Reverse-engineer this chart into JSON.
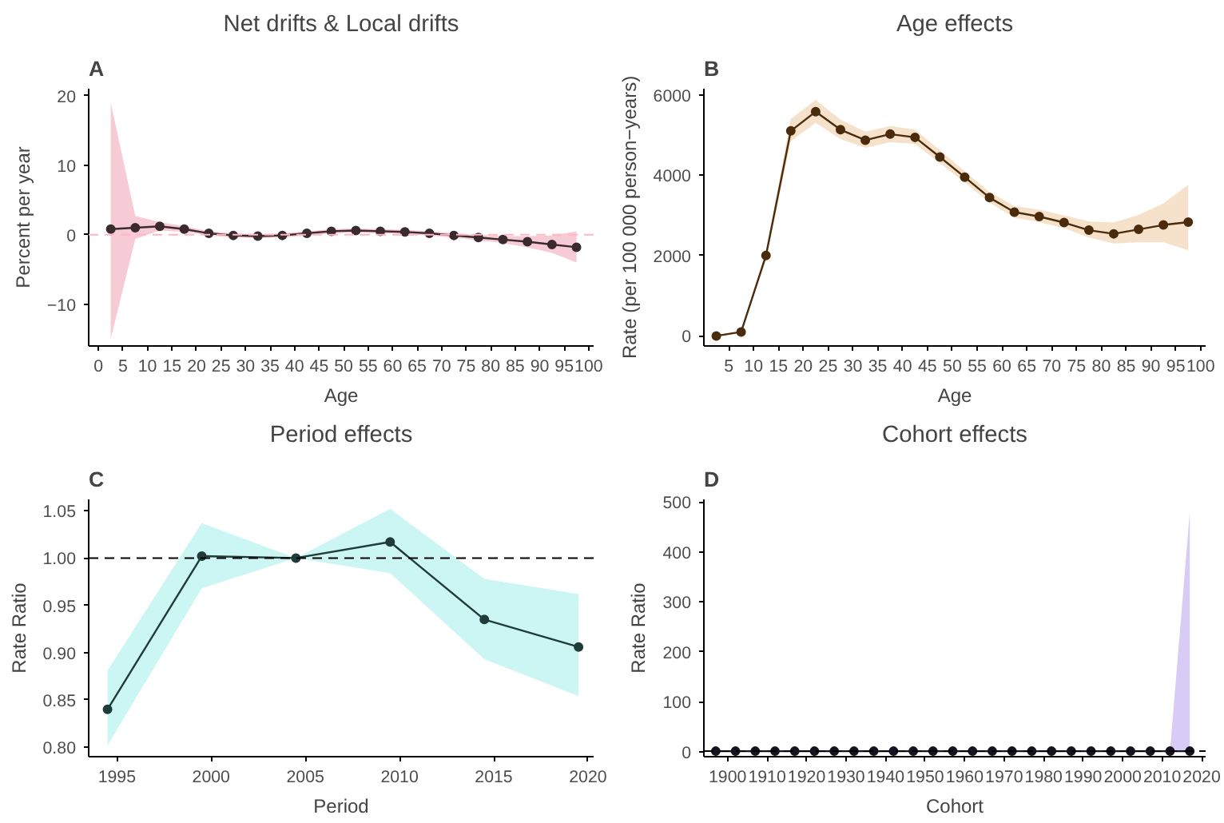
{
  "chart_data": [
    {
      "type": "line",
      "title": "Net drifts & Local drifts",
      "xlabel": "Age",
      "ylabel": "Percent per year",
      "annotations": [
        "A"
      ],
      "x": [
        2.5,
        7.5,
        12.5,
        17.5,
        22.5,
        27.5,
        32.5,
        37.5,
        42.5,
        47.5,
        52.5,
        57.5,
        62.5,
        67.5,
        72.5,
        77.5,
        82.5,
        87.5,
        92.5,
        97.5
      ],
      "series": [
        {
          "color": "#3b2a2e",
          "values": [
            0.8,
            1.0,
            1.2,
            0.8,
            0.2,
            -0.1,
            -0.2,
            -0.1,
            0.2,
            0.5,
            0.6,
            0.5,
            0.4,
            0.2,
            -0.1,
            -0.4,
            -0.7,
            -1.0,
            -1.4,
            -1.8
          ],
          "lower": [
            -15,
            -0.6,
            0.6,
            0.4,
            -0.1,
            -0.4,
            -0.5,
            -0.4,
            -0.1,
            0.2,
            0.3,
            0.2,
            0.1,
            -0.1,
            -0.4,
            -0.8,
            -1.2,
            -1.8,
            -2.6,
            -4.0
          ],
          "upper": [
            19,
            2.7,
            1.8,
            1.2,
            0.5,
            0.2,
            0.1,
            0.2,
            0.5,
            0.8,
            0.9,
            0.8,
            0.7,
            0.5,
            0.2,
            0.0,
            -0.2,
            -0.2,
            -0.1,
            0.5
          ]
        }
      ],
      "xlim": [
        -2,
        101
      ],
      "ylim": [
        -16,
        21
      ],
      "xticks": [
        0,
        5,
        10,
        15,
        20,
        25,
        30,
        35,
        40,
        45,
        50,
        55,
        60,
        65,
        70,
        75,
        80,
        85,
        90,
        95,
        100
      ],
      "yticks": [
        -10,
        0,
        10,
        20
      ],
      "ref_lines": [
        {
          "axis": "y",
          "value": 0,
          "label": null,
          "color": "#ffb6c1",
          "line_style": "dashed"
        }
      ],
      "grid": false,
      "marker": "circle",
      "line_style": "solid"
    },
    {
      "type": "line",
      "title": "Age effects",
      "xlabel": "Age",
      "ylabel": "Rate (per 100 000 person−years)",
      "annotations": [
        "B"
      ],
      "x": [
        2.5,
        7.5,
        12.5,
        17.5,
        22.5,
        27.5,
        32.5,
        37.5,
        42.5,
        47.5,
        52.5,
        57.5,
        62.5,
        67.5,
        72.5,
        77.5,
        82.5,
        87.5,
        92.5,
        97.5
      ],
      "series": [
        {
          "color": "#4a2c0c",
          "values": [
            0,
            100,
            2000,
            5100,
            5580,
            5130,
            4870,
            5020,
            4940,
            4450,
            3950,
            3440,
            3080,
            2970,
            2820,
            2630,
            2540,
            2650,
            2760,
            2830
          ],
          "lower": [
            -20,
            80,
            1900,
            4850,
            5300,
            4900,
            4680,
            4820,
            4780,
            4300,
            3820,
            3320,
            2940,
            2830,
            2680,
            2450,
            2300,
            2330,
            2330,
            2130
          ],
          "upper": [
            20,
            120,
            2100,
            5400,
            5870,
            5380,
            5080,
            5220,
            5130,
            4620,
            4100,
            3580,
            3230,
            3140,
            3000,
            2850,
            2820,
            3010,
            3300,
            3760
          ]
        }
      ],
      "xlim": [
        0,
        101
      ],
      "ylim": [
        -250,
        6150
      ],
      "xticks": [
        5,
        10,
        15,
        20,
        25,
        30,
        35,
        40,
        45,
        50,
        55,
        60,
        65,
        70,
        75,
        80,
        85,
        90,
        95,
        100
      ],
      "yticks": [
        0,
        2000,
        4000,
        6000
      ],
      "grid": false,
      "marker": "circle",
      "line_style": "solid"
    },
    {
      "type": "line",
      "title": "Period effects",
      "xlabel": "Period",
      "ylabel": "Rate Ratio",
      "annotations": [
        "C"
      ],
      "x": [
        1994.5,
        1999.5,
        2004.5,
        2009.5,
        2014.5,
        2019.5
      ],
      "series": [
        {
          "color": "#1f3b3a",
          "values": [
            0.84,
            1.002,
            1.0,
            1.017,
            0.935,
            0.906
          ],
          "lower": [
            0.802,
            0.968,
            1.0,
            0.984,
            0.893,
            0.854
          ],
          "upper": [
            0.881,
            1.037,
            1.0,
            1.052,
            0.978,
            0.962
          ]
        }
      ],
      "xlim": [
        1993.5,
        2020.3
      ],
      "ylim": [
        0.79,
        1.062
      ],
      "xticks": [
        1995,
        2000,
        2005,
        2010,
        2015,
        2020
      ],
      "yticks": [
        {
          "value": 0.8,
          "label": "0.80"
        },
        {
          "value": 0.85,
          "label": "0.85"
        },
        {
          "value": 0.9,
          "label": "0.90"
        },
        {
          "value": 0.95,
          "label": "0.95"
        },
        {
          "value": 1.0,
          "label": "1.00"
        },
        {
          "value": 1.05,
          "label": "1.05"
        }
      ],
      "ref_lines": [
        {
          "axis": "y",
          "value": 1,
          "label": null,
          "color": "#000000",
          "line_style": "dashed"
        }
      ],
      "grid": false,
      "marker": "circle",
      "line_style": "solid"
    },
    {
      "type": "line",
      "title": "Cohort effects",
      "xlabel": "Cohort",
      "ylabel": "Rate Ratio",
      "annotations": [
        "D"
      ],
      "x": [
        1897,
        1902,
        1907,
        1912,
        1917,
        1922,
        1927,
        1932,
        1937,
        1942,
        1947,
        1952,
        1957,
        1962,
        1967,
        1972,
        1977,
        1982,
        1987,
        1992,
        1997,
        2002,
        2007,
        2012,
        2017
      ],
      "series": [
        {
          "color": "#16121f",
          "values": [
            1,
            1,
            1,
            1,
            1,
            1,
            1,
            1,
            1,
            1,
            1,
            1,
            1,
            1,
            1,
            1,
            1,
            1,
            1,
            1,
            1,
            1,
            1,
            1,
            1
          ],
          "lower": [
            0,
            0,
            0,
            0,
            0,
            0,
            0,
            0,
            0,
            0,
            0,
            0,
            0,
            0,
            0,
            0,
            0,
            0,
            0,
            0,
            0,
            0,
            0,
            0,
            0
          ],
          "upper": [
            2,
            2,
            2,
            2,
            2,
            2,
            2,
            2,
            2,
            2,
            2,
            2,
            2,
            2,
            2,
            2,
            2,
            2,
            2,
            2,
            2,
            2,
            2,
            3,
            480
          ]
        }
      ],
      "xlim": [
        1894,
        2021
      ],
      "ylim": [
        -10,
        505
      ],
      "xticks": [
        1900,
        1910,
        1920,
        1930,
        1940,
        1950,
        1960,
        1970,
        1980,
        1990,
        2000,
        2010,
        2020
      ],
      "yticks": [
        0,
        100,
        200,
        300,
        400,
        500
      ],
      "ref_lines": [
        {
          "axis": "y",
          "value": 1,
          "label": null,
          "color": "#000000",
          "line_style": "dashed"
        }
      ],
      "grid": false,
      "marker": "circle",
      "line_style": "solid"
    }
  ]
}
